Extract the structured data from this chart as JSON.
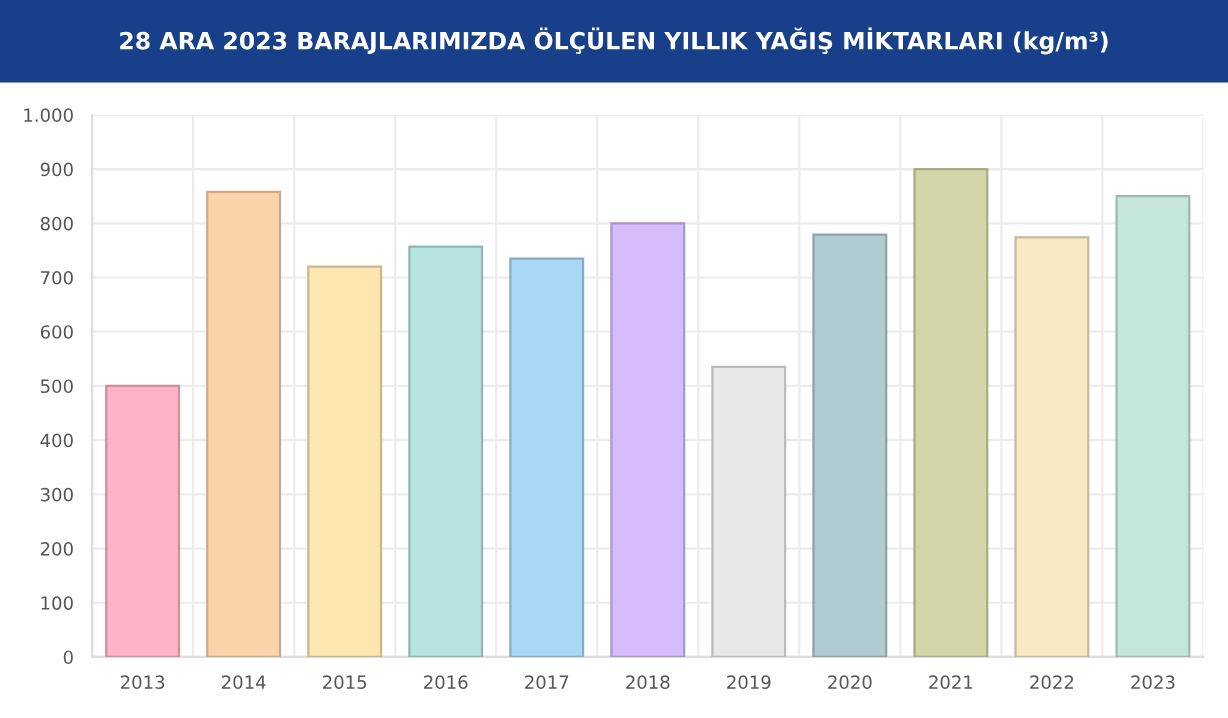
{
  "chart_data": {
    "type": "bar",
    "title": "28 ARA 2023 BARAJLARIMIZDA ÖLÇÜLEN YILLIK YAĞIŞ MİKTARLARI (kg/m³)",
    "categories": [
      "2013",
      "2014",
      "2015",
      "2016",
      "2017",
      "2018",
      "2019",
      "2020",
      "2021",
      "2022",
      "2023"
    ],
    "values": [
      500,
      858,
      720,
      757,
      735,
      800,
      535,
      779,
      900,
      774,
      850
    ],
    "colors": [
      "#ffb3c6",
      "#fcd3a8",
      "#fde6b0",
      "#b5e4e0",
      "#a9d8f5",
      "#d5bcfb",
      "#e8e8ea",
      "#b0ccd0",
      "#d2d6a8",
      "#f8e8c4",
      "#c5e6dc"
    ],
    "ylim": [
      0,
      1000
    ],
    "yticks": [
      0,
      100,
      200,
      300,
      400,
      500,
      600,
      700,
      800,
      900,
      {
        "value": 1000,
        "label": "1.000"
      }
    ],
    "grid": true
  }
}
